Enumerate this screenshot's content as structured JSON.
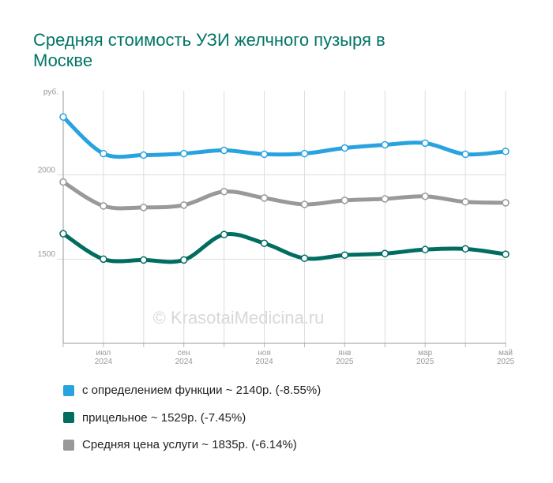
{
  "chart_data": {
    "type": "line",
    "title": "Средняя стоимость УЗИ желчного пузыря в Москве",
    "y_label": "руб.",
    "watermark": "© KrasotaiMedicina.ru",
    "categories": [
      null,
      "июл\n2024",
      null,
      "сен\n2024",
      null,
      "ноя\n2024",
      null,
      "янв\n2025",
      null,
      "мар\n2025",
      null,
      "май\n2025"
    ],
    "series": [
      {
        "name": "с определением функции ~ 2140р. (-8.55%)",
        "color": "#29a3e0",
        "values": [
          2344,
          2127,
          2118,
          2127,
          2146,
          2123,
          2127,
          2160,
          2179,
          2189,
          2123,
          2140
        ]
      },
      {
        "name": "прицельное ~ 1529р. (-7.45%)",
        "color": "#006d60",
        "values": [
          1651,
          1500,
          1495,
          1495,
          1646,
          1594,
          1505,
          1524,
          1533,
          1557,
          1561,
          1529
        ]
      },
      {
        "name": "Средняя цена услуги ~ 1835р. (-6.14%)",
        "color": "#999999",
        "values": [
          1958,
          1816,
          1807,
          1821,
          1901,
          1863,
          1825,
          1849,
          1858,
          1873,
          1840,
          1835
        ]
      }
    ],
    "ylim": [
      1000,
      2500
    ],
    "yticks": [
      1500,
      2000
    ],
    "grid": true
  }
}
